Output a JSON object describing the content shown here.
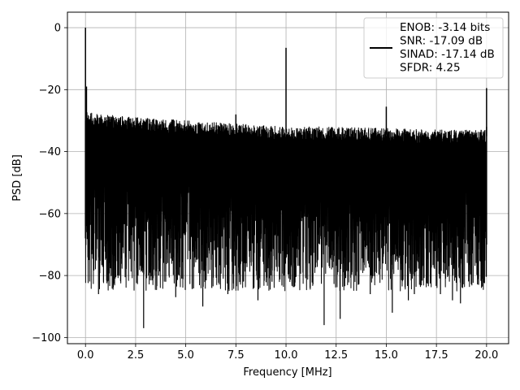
{
  "chart_data": {
    "type": "line",
    "xlabel": "Frequency [MHz]",
    "ylabel": "PSD [dB]",
    "xlim": [
      -0.9,
      21.1
    ],
    "ylim": [
      -102,
      5
    ],
    "xticks": [
      0.0,
      2.5,
      5.0,
      7.5,
      10.0,
      12.5,
      15.0,
      17.5,
      20.0
    ],
    "xtick_labels": [
      "0.0",
      "2.5",
      "5.0",
      "7.5",
      "10.0",
      "12.5",
      "15.0",
      "17.5",
      "20.0"
    ],
    "yticks": [
      0,
      -20,
      -40,
      -60,
      -80,
      -100
    ],
    "ytick_labels": [
      "0",
      "−20",
      "−40",
      "−60",
      "−80",
      "−100"
    ],
    "grid": true,
    "legend_position": "top-right",
    "series": [
      {
        "color": "#000000",
        "legend_lines": [
          "ENOB: -3.14 bits",
          "SNR: -17.09 dB",
          "SINAD: -17.14 dB",
          "SFDR: 4.25"
        ],
        "noise_ceiling": [
          [
            0.0,
            -26
          ],
          [
            0.1,
            -27
          ],
          [
            1.0,
            -28
          ],
          [
            2.5,
            -29
          ],
          [
            5.0,
            -30
          ],
          [
            7.5,
            -31
          ],
          [
            10.0,
            -32
          ],
          [
            12.5,
            -32
          ],
          [
            15.0,
            -32.5
          ],
          [
            17.5,
            -33
          ],
          [
            20.0,
            -33
          ]
        ],
        "noise_floor_typical": -75,
        "spikes": [
          {
            "x": 0.0,
            "y": 0.0
          },
          {
            "x": 0.05,
            "y": -19
          },
          {
            "x": 7.5,
            "y": -28
          },
          {
            "x": 10.0,
            "y": -6.5
          },
          {
            "x": 15.0,
            "y": -25.5
          },
          {
            "x": 20.0,
            "y": -19.5
          }
        ],
        "deep_dips": [
          {
            "x": 0.65,
            "y": -86
          },
          {
            "x": 0.9,
            "y": -82
          },
          {
            "x": 1.6,
            "y": -80
          },
          {
            "x": 2.9,
            "y": -97
          },
          {
            "x": 3.15,
            "y": -80
          },
          {
            "x": 3.4,
            "y": -78
          },
          {
            "x": 3.65,
            "y": -80
          },
          {
            "x": 4.0,
            "y": -82
          },
          {
            "x": 4.5,
            "y": -87
          },
          {
            "x": 4.8,
            "y": -81
          },
          {
            "x": 5.85,
            "y": -90
          },
          {
            "x": 6.3,
            "y": -84
          },
          {
            "x": 7.1,
            "y": -86
          },
          {
            "x": 7.85,
            "y": -82
          },
          {
            "x": 8.6,
            "y": -88
          },
          {
            "x": 9.3,
            "y": -82
          },
          {
            "x": 9.9,
            "y": -80
          },
          {
            "x": 10.3,
            "y": -83
          },
          {
            "x": 11.2,
            "y": -84
          },
          {
            "x": 11.9,
            "y": -96
          },
          {
            "x": 12.7,
            "y": -94
          },
          {
            "x": 13.6,
            "y": -83
          },
          {
            "x": 14.2,
            "y": -86
          },
          {
            "x": 15.3,
            "y": -92
          },
          {
            "x": 16.1,
            "y": -88
          },
          {
            "x": 16.4,
            "y": -86
          },
          {
            "x": 17.7,
            "y": -86
          },
          {
            "x": 18.3,
            "y": -88
          },
          {
            "x": 18.7,
            "y": -89
          },
          {
            "x": 19.6,
            "y": -83
          }
        ]
      }
    ]
  }
}
